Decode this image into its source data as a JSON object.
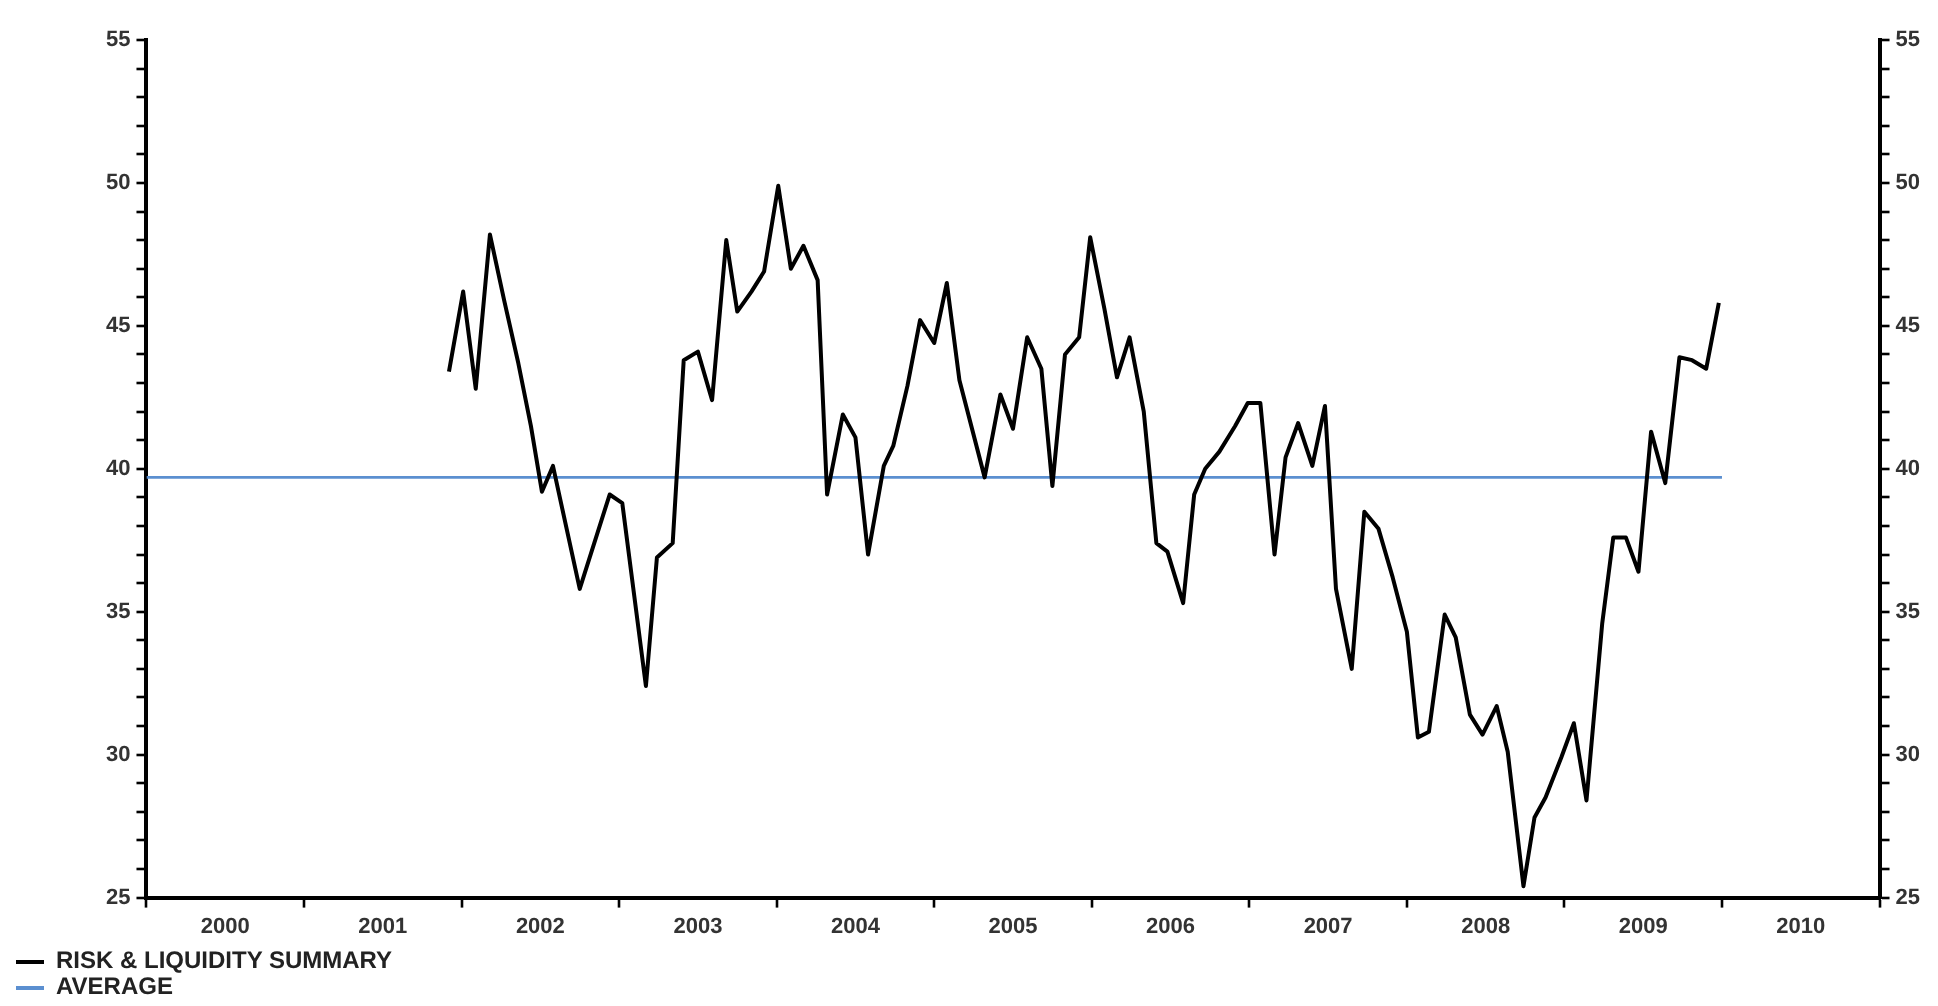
{
  "chart_data": {
    "type": "line",
    "legend": "bottom left",
    "grid": false,
    "marker": "none",
    "line_style": "solid",
    "xlim": [
      2000,
      2011
    ],
    "xticks": [
      {
        "value": 2000,
        "label": null
      },
      {
        "value": 2000.5,
        "label": "2000"
      },
      {
        "value": 2001,
        "label": null
      },
      {
        "value": 2001.5,
        "label": "2001"
      },
      {
        "value": 2002,
        "label": null
      },
      {
        "value": 2002.5,
        "label": "2002"
      },
      {
        "value": 2003,
        "label": null
      },
      {
        "value": 2003.5,
        "label": "2003"
      },
      {
        "value": 2004,
        "label": null
      },
      {
        "value": 2004.5,
        "label": "2004"
      },
      {
        "value": 2005,
        "label": null
      },
      {
        "value": 2005.5,
        "label": "2005"
      },
      {
        "value": 2006,
        "label": null
      },
      {
        "value": 2006.5,
        "label": "2006"
      },
      {
        "value": 2007,
        "label": null
      },
      {
        "value": 2007.5,
        "label": "2007"
      },
      {
        "value": 2008,
        "label": null
      },
      {
        "value": 2008.5,
        "label": "2008"
      },
      {
        "value": 2009,
        "label": null
      },
      {
        "value": 2009.5,
        "label": "2009"
      },
      {
        "value": 2010,
        "label": null
      },
      {
        "value": 2010.5,
        "label": "2010"
      },
      {
        "value": 2011,
        "label": null
      }
    ],
    "ylim": [
      25,
      55
    ],
    "yticks": [
      25,
      {
        "value": 26,
        "label": null
      },
      {
        "value": 27,
        "label": null
      },
      {
        "value": 28,
        "label": null
      },
      {
        "value": 29,
        "label": null
      },
      30,
      {
        "value": 31,
        "label": null
      },
      {
        "value": 32,
        "label": null
      },
      {
        "value": 33,
        "label": null
      },
      {
        "value": 34,
        "label": null
      },
      35,
      {
        "value": 36,
        "label": null
      },
      {
        "value": 37,
        "label": null
      },
      {
        "value": 38,
        "label": null
      },
      {
        "value": 39,
        "label": null
      },
      40,
      {
        "value": 41,
        "label": null
      },
      {
        "value": 42,
        "label": null
      },
      {
        "value": 43,
        "label": null
      },
      {
        "value": 44,
        "label": null
      },
      45,
      {
        "value": 46,
        "label": null
      },
      {
        "value": 47,
        "label": null
      },
      {
        "value": 48,
        "label": null
      },
      {
        "value": 49,
        "label": null
      },
      50,
      {
        "value": 51,
        "label": null
      },
      {
        "value": 52,
        "label": null
      },
      {
        "value": 53,
        "label": null
      },
      {
        "value": 54,
        "label": null
      },
      55
    ],
    "y2lim": [
      25,
      55
    ],
    "y2ticks": [
      25,
      {
        "value": 26,
        "label": null
      },
      {
        "value": 27,
        "label": null
      },
      {
        "value": 28,
        "label": null
      },
      {
        "value": 29,
        "label": null
      },
      30,
      {
        "value": 31,
        "label": null
      },
      {
        "value": 32,
        "label": null
      },
      {
        "value": 33,
        "label": null
      },
      {
        "value": 34,
        "label": null
      },
      35,
      {
        "value": 36,
        "label": null
      },
      {
        "value": 37,
        "label": null
      },
      {
        "value": 38,
        "label": null
      },
      {
        "value": 39,
        "label": null
      },
      40,
      {
        "value": 41,
        "label": null
      },
      {
        "value": 42,
        "label": null
      },
      {
        "value": 43,
        "label": null
      },
      {
        "value": 44,
        "label": null
      },
      45,
      {
        "value": 46,
        "label": null
      },
      {
        "value": 47,
        "label": null
      },
      {
        "value": 48,
        "label": null
      },
      {
        "value": 49,
        "label": null
      },
      50,
      {
        "value": 51,
        "label": null
      },
      {
        "value": 52,
        "label": null
      },
      {
        "value": 53,
        "label": null
      },
      {
        "value": 54,
        "label": null
      },
      55
    ],
    "series": [
      {
        "name": "RISK & LIQUIDITY SUMMARY",
        "color": "#000000",
        "x": [
          2001.92,
          2002.01,
          2002.09,
          2002.18,
          2002.27,
          2002.36,
          2002.44,
          2002.51,
          2002.58,
          2002.75,
          2002.94,
          2003.02,
          2003.17,
          2003.24,
          2003.34,
          2003.41,
          2003.5,
          2003.59,
          2003.68,
          2003.75,
          2003.84,
          2003.92,
          2004.01,
          2004.09,
          2004.17,
          2004.26,
          2004.32,
          2004.42,
          2004.5,
          2004.58,
          2004.68,
          2004.74,
          2004.83,
          2004.91,
          2005.0,
          2005.08,
          2005.16,
          2005.32,
          2005.42,
          2005.5,
          2005.59,
          2005.68,
          2005.75,
          2005.83,
          2005.92,
          2005.99,
          2006.08,
          2006.16,
          2006.24,
          2006.33,
          2006.41,
          2006.48,
          2006.58,
          2006.65,
          2006.72,
          2006.81,
          2006.91,
          2006.99,
          2007.07,
          2007.16,
          2007.23,
          2007.31,
          2007.4,
          2007.48,
          2007.55,
          2007.65,
          2007.73,
          2007.82,
          2007.91,
          2008.0,
          2008.07,
          2008.14,
          2008.24,
          2008.31,
          2008.4,
          2008.48,
          2008.57,
          2008.64,
          2008.74,
          2008.81,
          2008.88,
          2008.98,
          2009.06,
          2009.14,
          2009.24,
          2009.31,
          2009.39,
          2009.47,
          2009.55,
          2009.64,
          2009.73,
          2009.81,
          2009.9,
          2009.98
        ],
        "values": [
          43.4,
          46.2,
          42.8,
          48.2,
          45.9,
          43.7,
          41.5,
          39.2,
          40.1,
          35.8,
          39.1,
          38.8,
          32.4,
          36.9,
          37.4,
          43.8,
          44.1,
          42.4,
          48.0,
          45.5,
          46.2,
          46.9,
          49.9,
          47.0,
          47.8,
          46.6,
          39.1,
          41.9,
          41.1,
          37.0,
          40.1,
          40.8,
          42.9,
          45.2,
          44.4,
          46.5,
          43.1,
          39.7,
          42.6,
          41.4,
          44.6,
          43.5,
          39.4,
          44.0,
          44.6,
          48.1,
          45.6,
          43.2,
          44.6,
          42.0,
          37.4,
          37.1,
          35.3,
          39.1,
          40.0,
          40.6,
          41.5,
          42.3,
          42.3,
          37.0,
          40.4,
          41.6,
          40.1,
          42.2,
          35.8,
          33.0,
          38.5,
          37.9,
          36.2,
          34.3,
          30.6,
          30.8,
          34.9,
          34.1,
          31.4,
          30.7,
          31.7,
          30.1,
          25.4,
          27.8,
          28.5,
          29.9,
          31.1,
          28.4,
          34.6,
          37.6,
          37.6,
          36.4,
          41.3,
          39.5,
          43.9,
          43.8,
          43.5,
          45.8
        ]
      },
      {
        "name": "AVERAGE",
        "color": "#5b8fd0",
        "x": [
          2000,
          2010
        ],
        "values": [
          39.7,
          39.7
        ]
      }
    ]
  }
}
